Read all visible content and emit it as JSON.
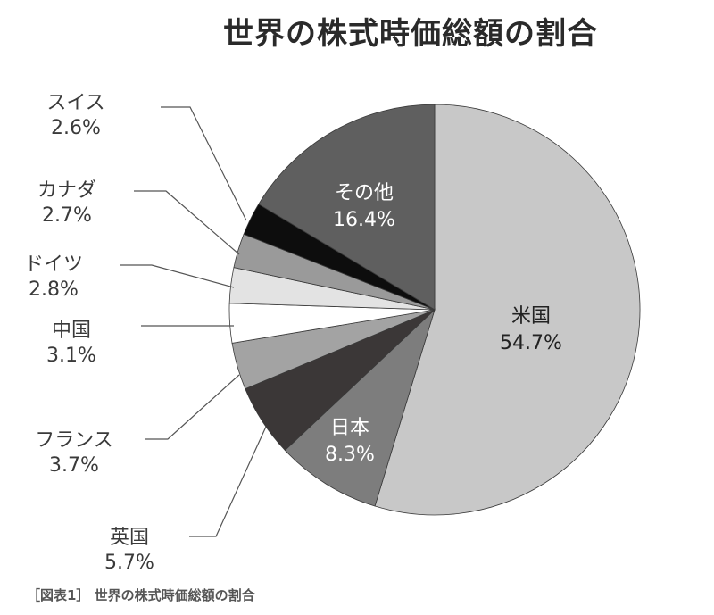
{
  "chart_data": {
    "type": "pie",
    "title": "世界の株式時価総額の割合",
    "slices": [
      {
        "name": "米国",
        "value": 54.7,
        "label": "54.7%",
        "color": "#c8c8c8",
        "text_color": "#222222"
      },
      {
        "name": "日本",
        "value": 8.3,
        "label": "8.3%",
        "color": "#7d7d7d",
        "text_color": "#ffffff"
      },
      {
        "name": "英国",
        "value": 5.7,
        "label": "5.7%",
        "color": "#3b3737",
        "text_color": "#3a3a3a"
      },
      {
        "name": "フランス",
        "value": 3.7,
        "label": "3.7%",
        "color": "#a3a3a3",
        "text_color": "#3a3a3a"
      },
      {
        "name": "中国",
        "value": 3.1,
        "label": "3.1%",
        "color": "#ffffff",
        "text_color": "#3a3a3a"
      },
      {
        "name": "ドイツ",
        "value": 2.8,
        "label": "2.8%",
        "color": "#e3e3e3",
        "text_color": "#3a3a3a"
      },
      {
        "name": "カナダ",
        "value": 2.7,
        "label": "2.7%",
        "color": "#9a9a9a",
        "text_color": "#3a3a3a"
      },
      {
        "name": "スイス",
        "value": 2.6,
        "label": "2.6%",
        "color": "#0d0d0d",
        "text_color": "#3a3a3a"
      },
      {
        "name": "その他",
        "value": 16.4,
        "label": "16.4%",
        "color": "#5f5f5f",
        "text_color": "#ffffff"
      }
    ]
  },
  "caption": "［図表1］ 世界の株式時価総額の割合"
}
